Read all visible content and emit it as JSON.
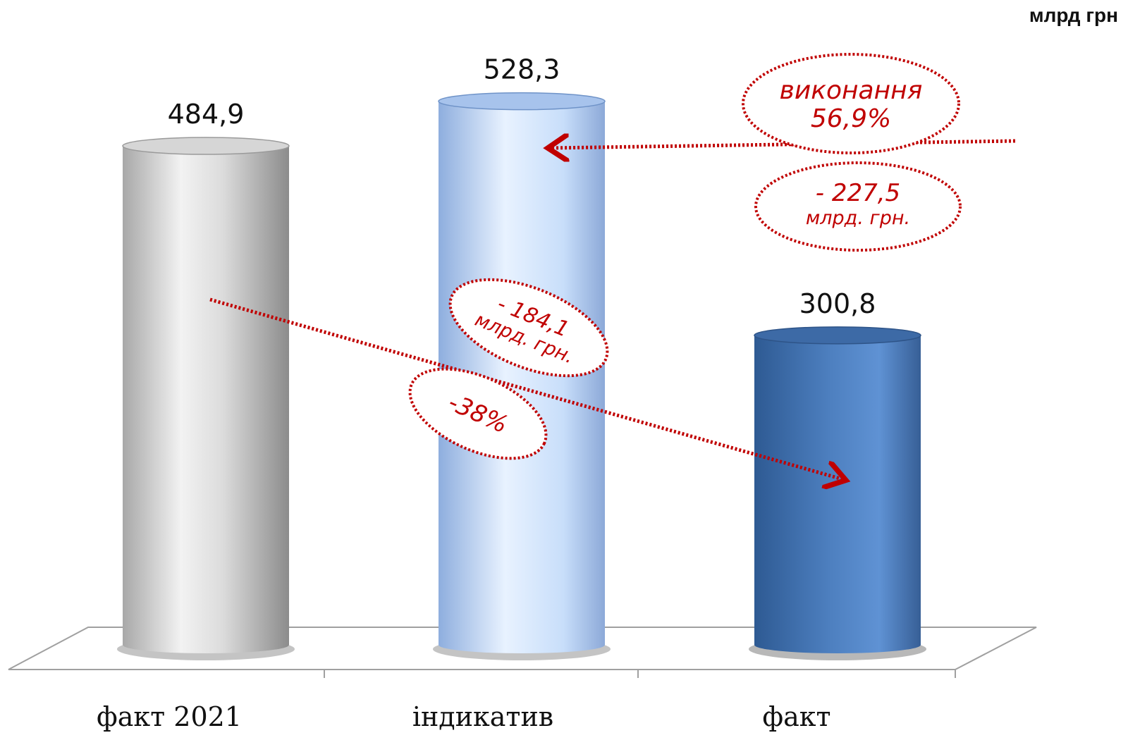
{
  "unit": "млрд грн",
  "chart_data": {
    "type": "bar",
    "categories": [
      "факт 2021",
      "індикатив",
      "факт"
    ],
    "values": [
      484.9,
      528.3,
      300.8
    ],
    "value_labels": [
      "484,9",
      "528,3",
      "300,8"
    ],
    "annotations": {
      "execution": [
        "виконання",
        "56,9%"
      ],
      "diff_vs_indicative": [
        "- 227,5",
        "млрд. грн."
      ],
      "diff_vs_2021": [
        "- 184,1",
        "млрд. грн."
      ],
      "pct_vs_2021": "-38%"
    }
  },
  "colors": {
    "accent": "#c00000",
    "bar_gray": "#b8b8b8",
    "bar_light_blue": "#a9c6ee",
    "bar_dark_blue": "#3f6fac"
  }
}
